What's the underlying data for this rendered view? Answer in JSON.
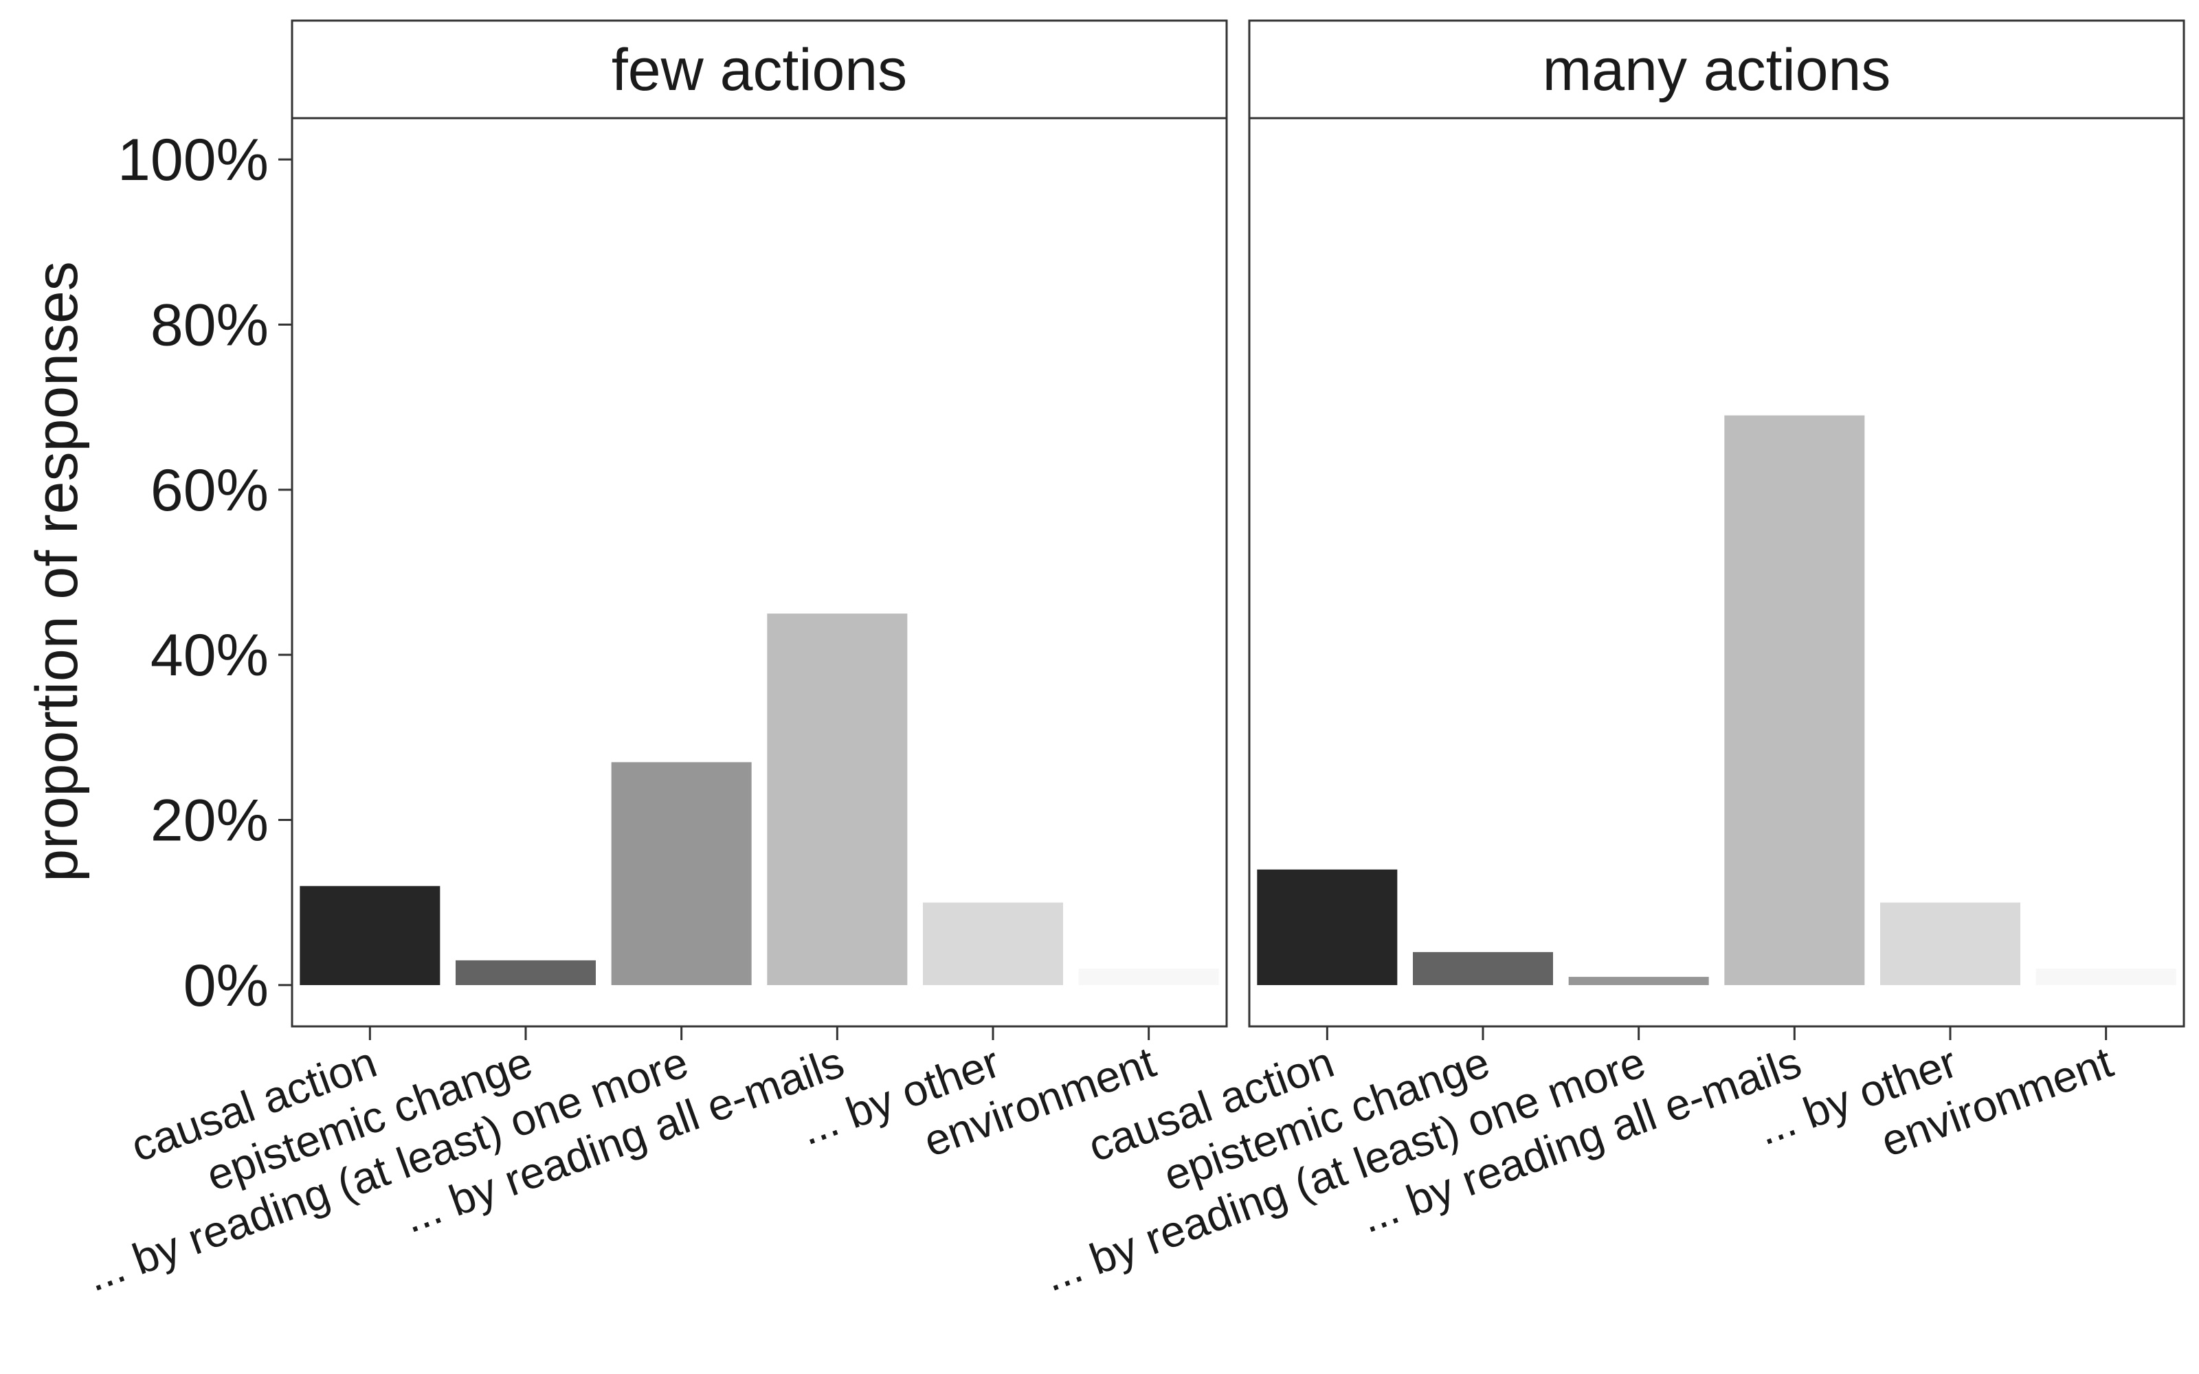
{
  "chart_data": {
    "type": "bar",
    "ylabel": "proportion of responses",
    "xlabel": "",
    "ylim": [
      -0.05,
      1.05
    ],
    "yticks": [
      0,
      0.2,
      0.4,
      0.6,
      0.8,
      1.0
    ],
    "ytick_labels": [
      "0%",
      "20%",
      "40%",
      "60%",
      "80%",
      "100%"
    ],
    "grid": false,
    "legend": "none",
    "categories": [
      "causal action",
      "epistemic change",
      "... by reading (at least) one more",
      "... by reading all e-mails",
      "... by other",
      "environment"
    ],
    "colors": [
      "#262626",
      "#636363",
      "#969696",
      "#bdbdbd",
      "#d9d9d9",
      "#f7f7f7"
    ],
    "panels": [
      {
        "title": "few actions",
        "values": [
          0.12,
          0.03,
          0.27,
          0.45,
          0.1,
          0.02
        ]
      },
      {
        "title": "many actions",
        "values": [
          0.14,
          0.04,
          0.01,
          0.69,
          0.1,
          0.02
        ]
      }
    ]
  }
}
